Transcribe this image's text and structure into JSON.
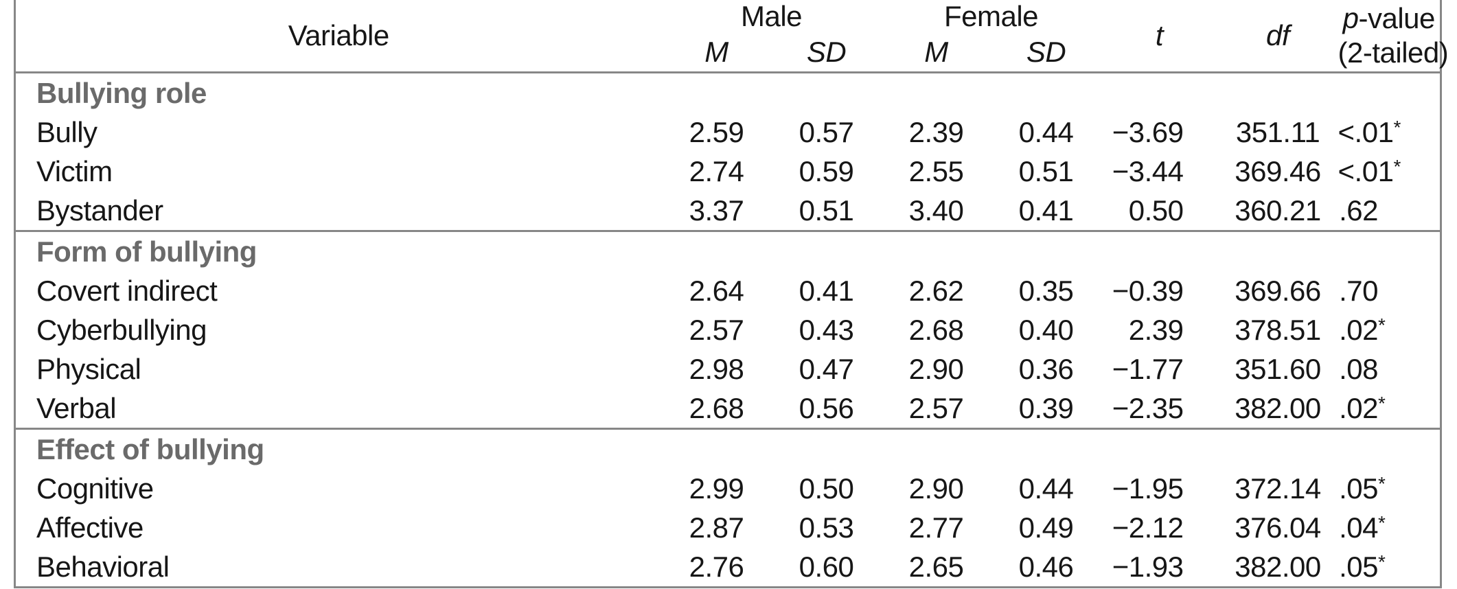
{
  "colors": {
    "background": "#ffffff",
    "border": "#878787",
    "body_text": "#161616",
    "section_title_text": "#6a6a6a"
  },
  "table": {
    "asterisk": "*",
    "header": {
      "variable": "Variable",
      "male": "Male",
      "female": "Female",
      "m_label": "M",
      "sd_label": "SD",
      "t_label": "t",
      "df_label": "df",
      "p_symbol": "p",
      "p_suffix": "-value",
      "p_line2": "(2-tailed)"
    },
    "sections": [
      {
        "title": "Bullying role",
        "rows": [
          {
            "label": "Bully",
            "male_m": "2.59",
            "male_sd": "0.57",
            "female_m": "2.39",
            "female_sd": "0.44",
            "t": "−3.69",
            "df": "351.11",
            "p": "<.01",
            "sig": true
          },
          {
            "label": "Victim",
            "male_m": "2.74",
            "male_sd": "0.59",
            "female_m": "2.55",
            "female_sd": "0.51",
            "t": "−3.44",
            "df": "369.46",
            "p": "<.01",
            "sig": true
          },
          {
            "label": "Bystander",
            "male_m": "3.37",
            "male_sd": "0.51",
            "female_m": "3.40",
            "female_sd": "0.41",
            "t": "0.50",
            "df": "360.21",
            "p": ".62",
            "sig": false
          }
        ]
      },
      {
        "title": "Form of bullying",
        "rows": [
          {
            "label": "Covert indirect",
            "male_m": "2.64",
            "male_sd": "0.41",
            "female_m": "2.62",
            "female_sd": "0.35",
            "t": "−0.39",
            "df": "369.66",
            "p": ".70",
            "sig": false
          },
          {
            "label": "Cyberbullying",
            "male_m": "2.57",
            "male_sd": "0.43",
            "female_m": "2.68",
            "female_sd": "0.40",
            "t": "2.39",
            "df": "378.51",
            "p": ".02",
            "sig": true
          },
          {
            "label": "Physical",
            "male_m": "2.98",
            "male_sd": "0.47",
            "female_m": "2.90",
            "female_sd": "0.36",
            "t": "−1.77",
            "df": "351.60",
            "p": ".08",
            "sig": false
          },
          {
            "label": "Verbal",
            "male_m": "2.68",
            "male_sd": "0.56",
            "female_m": "2.57",
            "female_sd": "0.39",
            "t": "−2.35",
            "df": "382.00",
            "p": ".02",
            "sig": true
          }
        ]
      },
      {
        "title": "Effect of bullying",
        "rows": [
          {
            "label": "Cognitive",
            "male_m": "2.99",
            "male_sd": "0.50",
            "female_m": "2.90",
            "female_sd": "0.44",
            "t": "−1.95",
            "df": "372.14",
            "p": ".05",
            "sig": true
          },
          {
            "label": "Affective",
            "male_m": "2.87",
            "male_sd": "0.53",
            "female_m": "2.77",
            "female_sd": "0.49",
            "t": "−2.12",
            "df": "376.04",
            "p": ".04",
            "sig": true
          },
          {
            "label": "Behavioral",
            "male_m": "2.76",
            "male_sd": "0.60",
            "female_m": "2.65",
            "female_sd": "0.46",
            "t": "−1.93",
            "df": "382.00",
            "p": ".05",
            "sig": true
          }
        ]
      }
    ]
  }
}
